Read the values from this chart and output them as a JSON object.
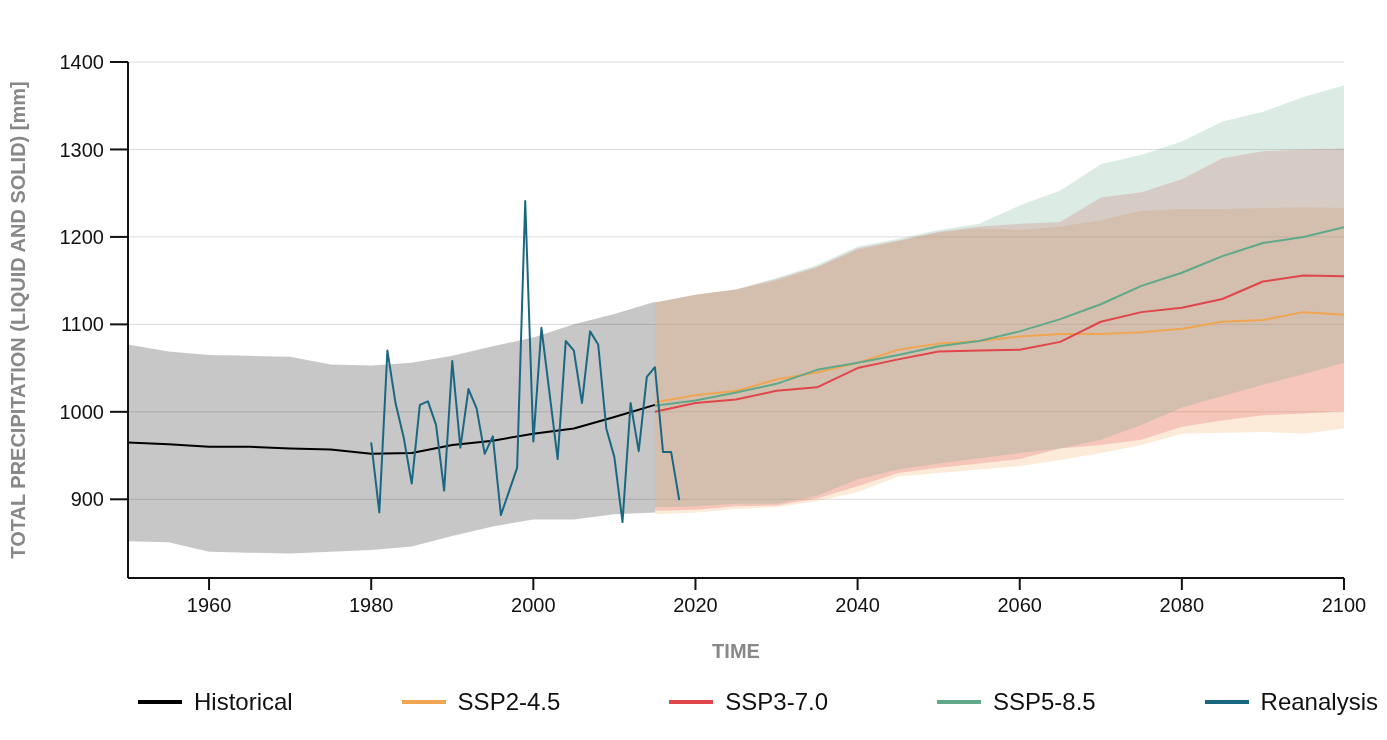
{
  "chart_data": {
    "type": "line",
    "xlabel": "TIME",
    "ylabel": "TOTAL PRECIPITATION (LIQUID AND SOLID) [mm]",
    "xlim": [
      1950,
      2100
    ],
    "xticks": [
      1960,
      1980,
      2000,
      2020,
      2040,
      2060,
      2080,
      2100
    ],
    "ylim": [
      810,
      1400
    ],
    "yticks": [
      900,
      1000,
      1100,
      1200,
      1300,
      1400
    ],
    "grid": "y",
    "legend": "bottom",
    "series": [
      {
        "name": "Historical",
        "color": "#000000",
        "x": [
          1950,
          1955,
          1960,
          1965,
          1970,
          1975,
          1980,
          1985,
          1990,
          1995,
          2000,
          2005,
          2010,
          2015
        ],
        "values": [
          965,
          963,
          960,
          960,
          958,
          957,
          952,
          953,
          962,
          967,
          975,
          981,
          994,
          1008
        ],
        "upper": [
          1077,
          1069,
          1065,
          1064,
          1063,
          1054,
          1053,
          1056,
          1064,
          1075,
          1085,
          1100,
          1112,
          1126
        ],
        "lower": [
          852,
          851,
          840,
          839,
          838,
          840,
          842,
          846,
          858,
          869,
          877,
          877,
          883,
          885
        ]
      },
      {
        "name": "SSP2-4.5",
        "color": "#f0a550",
        "x": [
          2015,
          2020,
          2025,
          2030,
          2035,
          2040,
          2045,
          2050,
          2055,
          2060,
          2065,
          2070,
          2075,
          2080,
          2085,
          2090,
          2095,
          2100
        ],
        "values": [
          1011,
          1019,
          1024,
          1037,
          1045,
          1056,
          1071,
          1078,
          1081,
          1086,
          1089,
          1089,
          1091,
          1095,
          1103,
          1105,
          1114,
          1111
        ],
        "upper": [
          1125,
          1134,
          1140,
          1150,
          1165,
          1185,
          1195,
          1205,
          1210,
          1208,
          1212,
          1219,
          1230,
          1232,
          1232,
          1233,
          1234,
          1233
        ],
        "lower": [
          883,
          885,
          889,
          891,
          898,
          908,
          926,
          930,
          934,
          938,
          945,
          953,
          962,
          975,
          976,
          977,
          975,
          981
        ]
      },
      {
        "name": "SSP3-7.0",
        "color": "#e0454a",
        "x": [
          2015,
          2020,
          2025,
          2030,
          2035,
          2040,
          2045,
          2050,
          2055,
          2060,
          2065,
          2070,
          2075,
          2080,
          2085,
          2090,
          2095,
          2100
        ],
        "values": [
          1000,
          1010,
          1014,
          1024,
          1028,
          1050,
          1060,
          1069,
          1070,
          1071,
          1080,
          1103,
          1114,
          1119,
          1129,
          1149,
          1156,
          1155
        ],
        "upper": [
          1125,
          1134,
          1140,
          1152,
          1166,
          1187,
          1196,
          1206,
          1212,
          1215,
          1217,
          1245,
          1251,
          1266,
          1290,
          1298,
          1300,
          1301
        ],
        "lower": [
          887,
          888,
          892,
          893,
          901,
          915,
          930,
          936,
          941,
          946,
          958,
          962,
          968,
          983,
          990,
          996,
          998,
          1001
        ]
      },
      {
        "name": "SSP5-8.5",
        "color": "#5fa98a",
        "x": [
          2015,
          2020,
          2025,
          2030,
          2035,
          2040,
          2045,
          2050,
          2055,
          2060,
          2065,
          2070,
          2075,
          2080,
          2085,
          2090,
          2095,
          2100
        ],
        "values": [
          1007,
          1013,
          1022,
          1032,
          1048,
          1056,
          1065,
          1075,
          1081,
          1092,
          1106,
          1123,
          1144,
          1159,
          1178,
          1193,
          1200,
          1211
        ],
        "upper": [
          1125,
          1134,
          1140,
          1153,
          1168,
          1189,
          1198,
          1208,
          1215,
          1236,
          1253,
          1283,
          1294,
          1309,
          1332,
          1343,
          1360,
          1373
        ],
        "lower": [
          891,
          892,
          895,
          895,
          904,
          923,
          934,
          941,
          947,
          953,
          958,
          968,
          985,
          1005,
          1018,
          1031,
          1043,
          1056
        ]
      },
      {
        "name": "Reanalysis",
        "color": "#1b6781",
        "x": [
          1980,
          1981,
          1982,
          1983,
          1984,
          1985,
          1986,
          1987,
          1988,
          1989,
          1990,
          1991,
          1992,
          1993,
          1994,
          1995,
          1996,
          1997,
          1998,
          1999,
          2000,
          2001,
          2002,
          2003,
          2004,
          2005,
          2006,
          2007,
          2008,
          2009,
          2010,
          2011,
          2012,
          2013,
          2014,
          2015,
          2016,
          2017,
          2018
        ],
        "values": [
          965,
          885,
          1070,
          1010,
          971,
          918,
          1008,
          1012,
          985,
          910,
          1058,
          959,
          1026,
          1004,
          952,
          972,
          882,
          909,
          936,
          1241,
          966,
          1096,
          1021,
          946,
          1081,
          1070,
          1010,
          1092,
          1077,
          981,
          948,
          874,
          1010,
          955,
          1040,
          1051,
          954,
          954,
          899
        ]
      }
    ]
  }
}
